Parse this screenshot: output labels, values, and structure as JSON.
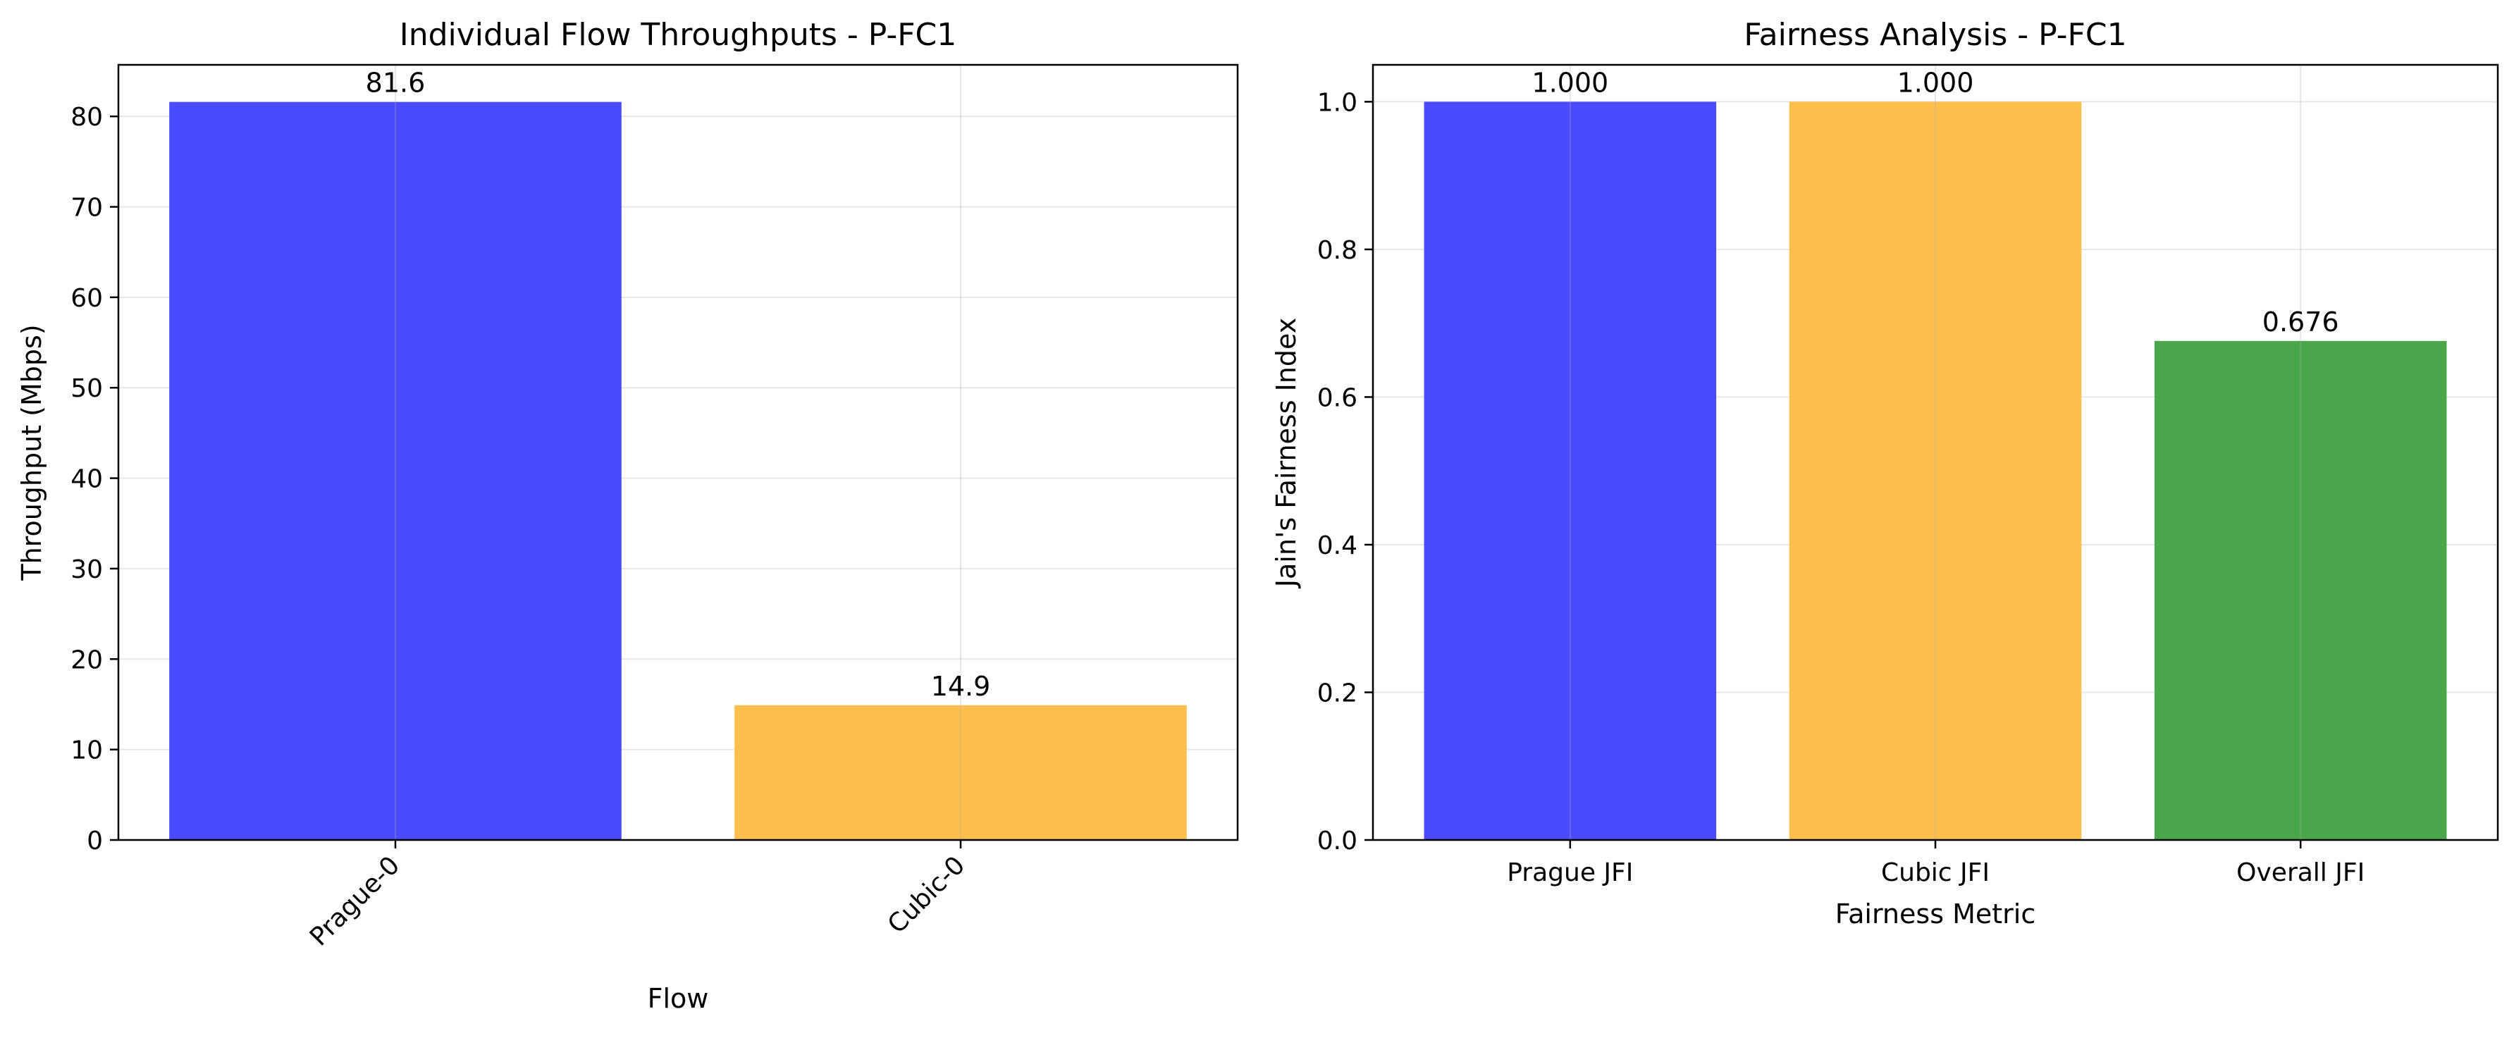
{
  "chart_data": [
    {
      "type": "bar",
      "title": "Individual Flow Throughputs - P-FC1",
      "xlabel": "Flow",
      "ylabel": "Throughput (Mbps)",
      "categories": [
        "Prague-0",
        "Cubic-0"
      ],
      "values": [
        81.6,
        14.9
      ],
      "value_labels": [
        "81.6",
        "14.9"
      ],
      "colors": [
        "#4a4aff",
        "#ffbf4d"
      ],
      "ylim": [
        0,
        85.7
      ],
      "yticks": [
        0,
        10,
        20,
        30,
        40,
        50,
        60,
        70,
        80
      ],
      "ytick_labels": [
        "0",
        "10",
        "20",
        "30",
        "40",
        "50",
        "60",
        "70",
        "80"
      ],
      "xtick_rotation": 45,
      "grid": true
    },
    {
      "type": "bar",
      "title": "Fairness Analysis - P-FC1",
      "xlabel": "Fairness Metric",
      "ylabel": "Jain's Fairness Index",
      "categories": [
        "Prague JFI",
        "Cubic JFI",
        "Overall JFI"
      ],
      "values": [
        1.0,
        1.0,
        0.676
      ],
      "value_labels": [
        "1.000",
        "1.000",
        "0.676"
      ],
      "colors": [
        "#4a4aff",
        "#ffbf4d",
        "#4aa64a"
      ],
      "ylim": [
        0,
        1.05
      ],
      "yticks": [
        0,
        0.2,
        0.4,
        0.6,
        0.8,
        1.0
      ],
      "ytick_labels": [
        "0.0",
        "0.2",
        "0.4",
        "0.6",
        "0.8",
        "1.0"
      ],
      "xtick_rotation": 0,
      "grid": true
    }
  ]
}
